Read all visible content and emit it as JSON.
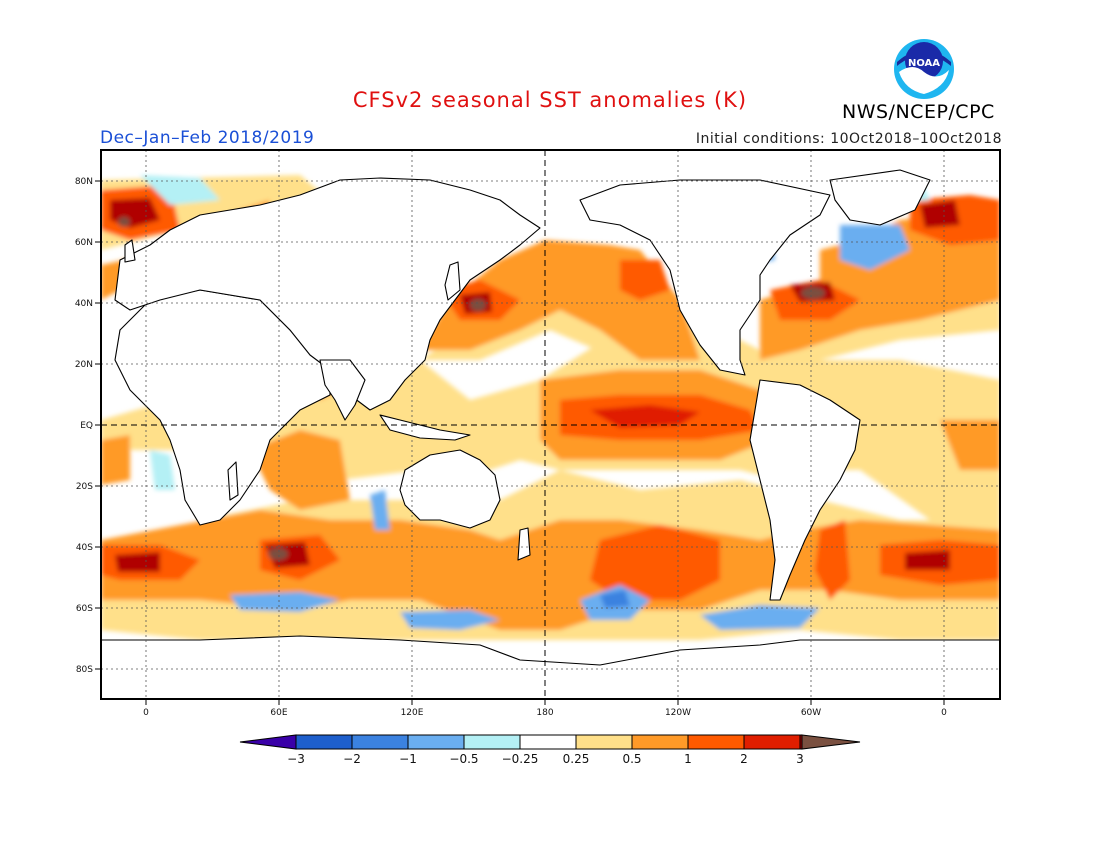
{
  "title": "CFSv2 seasonal SST anomalies (K)",
  "season": "Dec–Jan–Feb 2018/2019",
  "initial_conditions": "Initial conditions: 10Oct2018–10Oct2018",
  "agency": "NWS/NCEP/CPC",
  "logo_text": "NOAA",
  "map": {
    "lon_range": [
      -20,
      380
    ],
    "lat_range": [
      -90,
      90
    ],
    "lat_ticks": [
      "80N",
      "60N",
      "40N",
      "20N",
      "EQ",
      "20S",
      "40S",
      "60S",
      "80S"
    ],
    "lon_ticks": [
      "0",
      "60E",
      "120E",
      "180",
      "120W",
      "60W",
      "0"
    ],
    "reference_lines": [
      "EQ",
      "180"
    ],
    "grid": "dotted"
  },
  "colorbar": {
    "levels": [
      "−3",
      "−2",
      "−1",
      "−0.5",
      "−0.25",
      "0.25",
      "0.5",
      "1",
      "2",
      "3"
    ],
    "colors": [
      "#3a00a8",
      "#1e5fcc",
      "#3b82e0",
      "#6aaef0",
      "#b4f0f5",
      "#ffffff",
      "#ffe08a",
      "#ff9a28",
      "#ff5a00",
      "#e01e00",
      "#b00000",
      "#7a5040"
    ]
  },
  "anomaly_regions": [
    {
      "name": "central-eastern equatorial Pacific",
      "level": "1 to 2"
    },
    {
      "name": "North Pacific",
      "level": "0.5 to 2"
    },
    {
      "name": "Northwest Atlantic",
      "level": "2 to 3"
    },
    {
      "name": "Southern Ocean 40S band",
      "level": "1 to 3"
    },
    {
      "name": "South Pacific 60S",
      "level": "−0.5 to −1"
    },
    {
      "name": "Labrador Sea",
      "level": "−0.25 to −1"
    }
  ]
}
